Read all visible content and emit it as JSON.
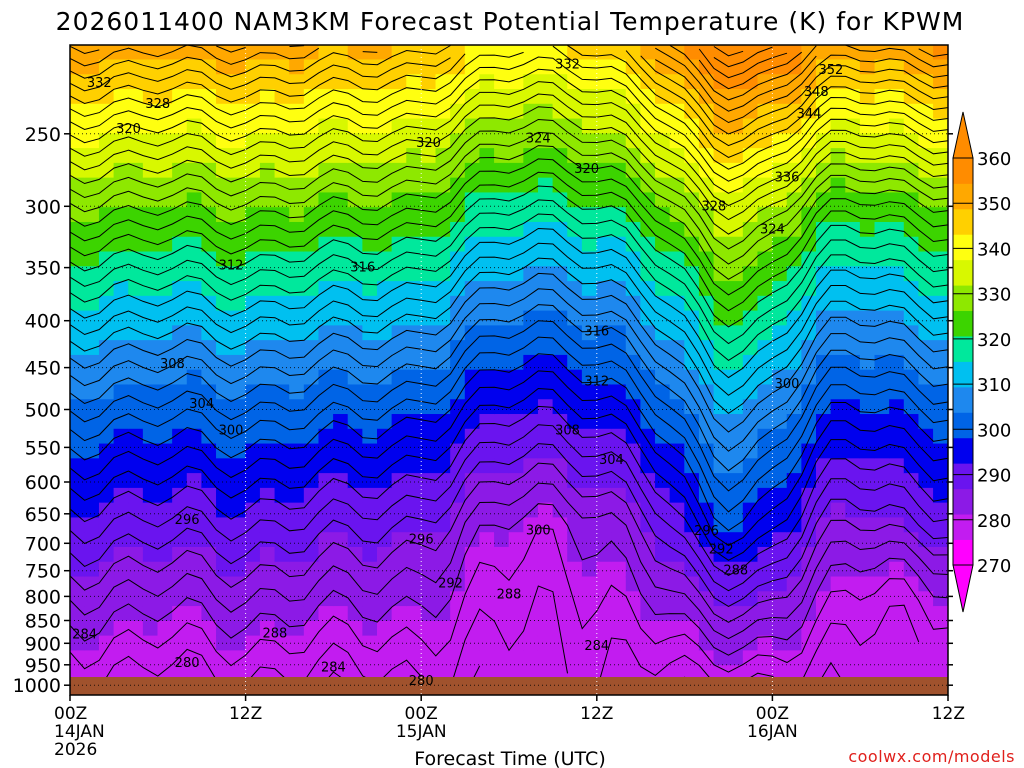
{
  "chart_data": {
    "type": "contour",
    "title": "2026011400 NAM3KM Forecast Potential Temperature (K) for KPWM",
    "xlabel": "Forecast Time (UTC)",
    "ylabel": "",
    "y_ticks": [
      "250",
      "300",
      "350",
      "400",
      "450",
      "500",
      "550",
      "600",
      "650",
      "700",
      "750",
      "800",
      "850",
      "900",
      "950",
      "1000"
    ],
    "y_tick_values": [
      250,
      300,
      350,
      400,
      450,
      500,
      550,
      600,
      650,
      700,
      750,
      800,
      850,
      900,
      950,
      1000
    ],
    "ylim": [
      200,
      1025
    ],
    "x_ticks": [
      {
        "hour": 0,
        "label": "00Z",
        "sub1": "14JAN",
        "sub2": "2026"
      },
      {
        "hour": 12,
        "label": "12Z",
        "sub1": "",
        "sub2": ""
      },
      {
        "hour": 24,
        "label": "00Z",
        "sub1": "15JAN",
        "sub2": ""
      },
      {
        "hour": 36,
        "label": "12Z",
        "sub1": "",
        "sub2": ""
      },
      {
        "hour": 48,
        "label": "00Z",
        "sub1": "16JAN",
        "sub2": ""
      },
      {
        "hour": 60,
        "label": "12Z",
        "sub1": "",
        "sub2": ""
      }
    ],
    "xlim": [
      0,
      60
    ],
    "colorbar": {
      "levels": [
        270,
        280,
        290,
        300,
        310,
        320,
        330,
        340,
        350,
        360
      ],
      "labels": [
        "270",
        "280",
        "290",
        "300",
        "310",
        "320",
        "330",
        "340",
        "350",
        "360"
      ],
      "colors": [
        "#ff00ff",
        "#c21cf0",
        "#8c1ae6",
        "#6a14ef",
        "#0000ee",
        "#0064e6",
        "#1e88ee",
        "#00c0f0",
        "#00e89c",
        "#3cd400",
        "#8ee800",
        "#d8f800",
        "#ffff10",
        "#ffd000",
        "#ffa800",
        "#ff8c00"
      ]
    },
    "contour_labels": [
      {
        "text": "332",
        "hour": 2.0,
        "p": 220
      },
      {
        "text": "328",
        "hour": 6.0,
        "p": 232
      },
      {
        "text": "320",
        "hour": 4.0,
        "p": 247
      },
      {
        "text": "332",
        "hour": 34.0,
        "p": 210
      },
      {
        "text": "352",
        "hour": 52.0,
        "p": 213
      },
      {
        "text": "348",
        "hour": 51.0,
        "p": 225
      },
      {
        "text": "344",
        "hour": 50.5,
        "p": 238
      },
      {
        "text": "320",
        "hour": 24.5,
        "p": 256
      },
      {
        "text": "324",
        "hour": 32.0,
        "p": 253
      },
      {
        "text": "320",
        "hour": 35.3,
        "p": 273
      },
      {
        "text": "336",
        "hour": 49.0,
        "p": 279
      },
      {
        "text": "328",
        "hour": 44.0,
        "p": 300
      },
      {
        "text": "324",
        "hour": 48.0,
        "p": 318
      },
      {
        "text": "312",
        "hour": 11.0,
        "p": 348
      },
      {
        "text": "316",
        "hour": 20.0,
        "p": 350
      },
      {
        "text": "316",
        "hour": 36.0,
        "p": 411
      },
      {
        "text": "308",
        "hour": 7.0,
        "p": 446
      },
      {
        "text": "312",
        "hour": 36.0,
        "p": 466
      },
      {
        "text": "300",
        "hour": 49.0,
        "p": 469
      },
      {
        "text": "304",
        "hour": 9.0,
        "p": 493
      },
      {
        "text": "300",
        "hour": 11.0,
        "p": 527
      },
      {
        "text": "308",
        "hour": 34.0,
        "p": 527
      },
      {
        "text": "304",
        "hour": 37.0,
        "p": 568
      },
      {
        "text": "296",
        "hour": 8.0,
        "p": 660
      },
      {
        "text": "300",
        "hour": 32.0,
        "p": 678
      },
      {
        "text": "296",
        "hour": 43.5,
        "p": 679
      },
      {
        "text": "296",
        "hour": 24.0,
        "p": 693
      },
      {
        "text": "292",
        "hour": 44.5,
        "p": 711
      },
      {
        "text": "292",
        "hour": 26.0,
        "p": 774
      },
      {
        "text": "288",
        "hour": 45.5,
        "p": 750
      },
      {
        "text": "288",
        "hour": 30.0,
        "p": 796
      },
      {
        "text": "284",
        "hour": 1.0,
        "p": 880
      },
      {
        "text": "288",
        "hour": 14.0,
        "p": 878
      },
      {
        "text": "284",
        "hour": 36.0,
        "p": 906
      },
      {
        "text": "280",
        "hour": 8.0,
        "p": 946
      },
      {
        "text": "284",
        "hour": 18.0,
        "p": 956
      },
      {
        "text": "280",
        "hour": 24.0,
        "p": 990
      }
    ]
  },
  "credit": "coolwx.com/models",
  "colors": {
    "ground": "#a0522d",
    "axis": "#000000"
  }
}
